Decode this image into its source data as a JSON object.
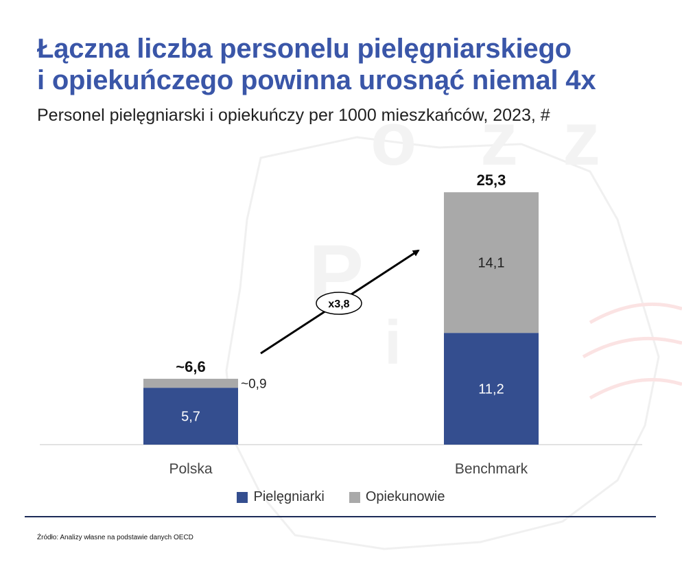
{
  "title_lines": [
    "Łączna liczba personelu pielęgniarskiego",
    "i opiekuńczego powinna urosnąć niemal 4x"
  ],
  "subtitle": "Personel pielęgniarski i opiekuńczy per 1000 mieszkańców, 2023, #",
  "source": "Źródło: Analizy własne na podstawie danych OECD",
  "colors": {
    "nurses": "#344e8f",
    "caregivers": "#a9a9a9",
    "title": "#3a56a8"
  },
  "chart_data": {
    "type": "bar",
    "stacked": true,
    "categories": [
      "Polska",
      "Benchmark"
    ],
    "series": [
      {
        "name": "Pielęgniarki",
        "values": [
          5.7,
          11.2
        ],
        "labels": [
          "5,7",
          "11,2"
        ]
      },
      {
        "name": "Opiekunowie",
        "values": [
          0.9,
          14.1
        ],
        "labels": [
          "~0,9",
          "14,1"
        ]
      }
    ],
    "totals": [
      "~6,6",
      "25,3"
    ],
    "annotation": "x3,8",
    "ylim": [
      0,
      26
    ]
  }
}
